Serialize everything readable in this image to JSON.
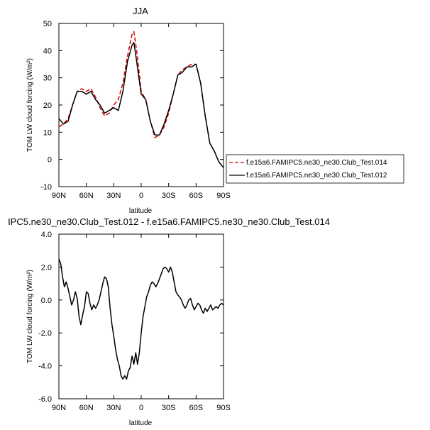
{
  "chart_data": [
    {
      "type": "line",
      "title": "JJA",
      "xlabel": "latitude",
      "ylabel": "TOM LW cloud forcing (W/m²)",
      "ylim": [
        -10,
        50
      ],
      "xlim": [
        -90,
        90
      ],
      "yticks": [
        -10,
        0,
        10,
        20,
        30,
        40,
        50
      ],
      "xticks": [
        -90,
        -60,
        -30,
        0,
        30,
        60,
        90
      ],
      "xtick_labels": [
        "90N",
        "60N",
        "30N",
        "0",
        "30S",
        "60S",
        "90S"
      ],
      "legend_position": "right",
      "series": [
        {
          "name": "f.e15a6.FAMIPC5.ne30_ne30.Club_Test.014",
          "color": "#d40000",
          "style": "dashed",
          "x": [
            -90,
            -85,
            -80,
            -75,
            -70,
            -65,
            -60,
            -55,
            -50,
            -45,
            -40,
            -35,
            -30,
            -25,
            -20,
            -15,
            -10,
            -8,
            -5,
            0,
            5,
            10,
            15,
            20,
            25,
            30,
            35,
            40,
            45,
            50,
            55,
            60,
            65,
            70,
            75,
            80,
            85,
            90
          ],
          "y": [
            12,
            13,
            15,
            20,
            25,
            26,
            25,
            26,
            23,
            19,
            16,
            17,
            20,
            22,
            28,
            38,
            46,
            47,
            40,
            25,
            22,
            14,
            8,
            9,
            12,
            17,
            24,
            31,
            33,
            34,
            35,
            35,
            28,
            16,
            6,
            3,
            -1,
            -3
          ]
        },
        {
          "name": "f.e15a6.FAMIPC5.ne30_ne30.Club_Test.012",
          "color": "#000000",
          "style": "solid",
          "x": [
            -90,
            -85,
            -80,
            -75,
            -70,
            -65,
            -60,
            -55,
            -50,
            -45,
            -40,
            -35,
            -30,
            -25,
            -20,
            -15,
            -10,
            -8,
            -5,
            0,
            5,
            10,
            15,
            20,
            25,
            30,
            35,
            40,
            45,
            50,
            55,
            60,
            65,
            70,
            75,
            80,
            85,
            90
          ],
          "y": [
            15,
            13,
            14,
            20,
            25,
            25,
            24,
            25,
            22,
            20,
            17,
            18,
            19,
            18,
            25,
            36,
            42,
            43,
            36,
            24,
            22,
            14,
            9,
            9,
            13,
            18,
            24,
            31,
            32,
            34,
            34,
            35,
            28,
            16,
            6,
            3,
            -1,
            -3
          ]
        }
      ]
    },
    {
      "type": "line",
      "title": "IPC5.ne30_ne30.Club_Test.012 - f.e15a6.FAMIPC5.ne30_ne30.Club_Test.014",
      "xlabel": "latitude",
      "ylabel": "TOM LW cloud forcing (W/m²)",
      "ylim": [
        -6,
        4
      ],
      "xlim": [
        -90,
        90
      ],
      "yticks": [
        -6,
        -4,
        -2,
        0,
        2,
        4
      ],
      "ytick_labels": [
        "-6.0",
        "-4.0",
        "-2.0",
        "0.0",
        "2.0",
        "4.0"
      ],
      "xticks": [
        -90,
        -60,
        -30,
        0,
        30,
        60,
        90
      ],
      "xtick_labels": [
        "90N",
        "60N",
        "30N",
        "0",
        "30S",
        "60S",
        "90S"
      ],
      "series": [
        {
          "color": "#000000",
          "style": "solid",
          "x": [
            -90,
            -88,
            -86,
            -84,
            -82,
            -80,
            -78,
            -76,
            -74,
            -72,
            -70,
            -68,
            -66,
            -64,
            -62,
            -60,
            -58,
            -56,
            -54,
            -52,
            -50,
            -48,
            -46,
            -44,
            -42,
            -40,
            -38,
            -36,
            -34,
            -32,
            -30,
            -28,
            -26,
            -24,
            -22,
            -20,
            -18,
            -16,
            -14,
            -12,
            -10,
            -8,
            -6,
            -4,
            -2,
            0,
            2,
            4,
            6,
            8,
            10,
            12,
            14,
            16,
            18,
            20,
            22,
            24,
            26,
            28,
            30,
            32,
            34,
            36,
            38,
            40,
            42,
            44,
            46,
            48,
            50,
            52,
            54,
            56,
            58,
            60,
            62,
            64,
            66,
            68,
            70,
            72,
            74,
            76,
            78,
            80,
            82,
            84,
            86,
            88,
            90
          ],
          "y": [
            2.5,
            2.2,
            1.4,
            0.8,
            1.1,
            0.7,
            0.2,
            -0.3,
            0.0,
            0.5,
            0.1,
            -1.0,
            -1.5,
            -0.9,
            -0.4,
            0.5,
            0.4,
            -0.2,
            -0.6,
            -0.3,
            -0.5,
            -0.3,
            0.0,
            0.5,
            1.0,
            1.4,
            1.3,
            0.8,
            -0.5,
            -1.5,
            -2.2,
            -3.0,
            -3.6,
            -4.0,
            -4.6,
            -4.8,
            -4.6,
            -4.8,
            -4.3,
            -4.1,
            -3.4,
            -3.9,
            -3.2,
            -3.9,
            -3.2,
            -2.0,
            -1.0,
            -0.4,
            0.2,
            0.5,
            0.9,
            1.1,
            1.0,
            0.8,
            1.0,
            1.3,
            1.6,
            1.9,
            2.0,
            1.9,
            1.7,
            2.0,
            1.7,
            1.1,
            0.5,
            0.3,
            0.2,
            0.0,
            -0.3,
            -0.5,
            -0.3,
            0.0,
            0.1,
            -0.3,
            -0.6,
            -0.4,
            -0.2,
            -0.3,
            -0.6,
            -0.8,
            -0.5,
            -0.7,
            -0.5,
            -0.3,
            -0.6,
            -0.5,
            -0.4,
            -0.5,
            -0.3,
            -0.2,
            -0.3
          ]
        }
      ]
    }
  ]
}
